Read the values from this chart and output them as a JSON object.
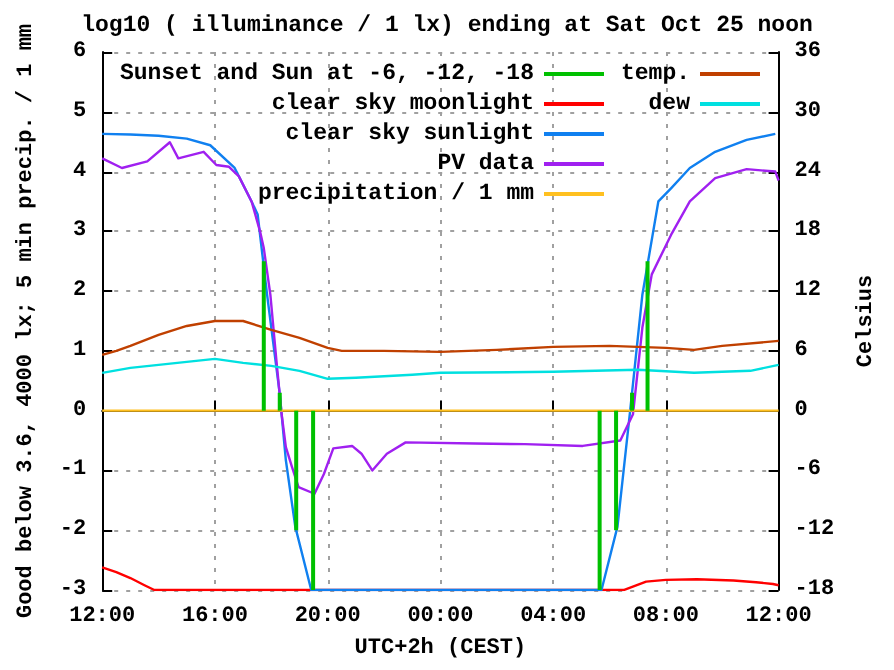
{
  "chart_data": {
    "type": "line",
    "title": "log10 ( illuminance / 1 lx) ending at Sat Oct 25 noon",
    "xlabel": "UTC+2h (CEST)",
    "ylabel": "Good below 3.6, 4000 lx; 5 min precip. / 1 mm",
    "y2label": "Celsius",
    "xlim": [
      "--10-24T12:00",
      "--10-25T12:00"
    ],
    "xticks": [
      {
        "value": "--10-24T12:00",
        "label": "12:00"
      },
      {
        "value": "--10-24T16:00",
        "label": "16:00"
      },
      {
        "value": "--10-24T20:00",
        "label": "20:00"
      },
      {
        "value": "--10-25T00:00",
        "label": "00:00"
      },
      {
        "value": "--10-25T04:00",
        "label": "04:00"
      },
      {
        "value": "--10-25T08:00",
        "label": "08:00"
      },
      {
        "value": "--10-25T12:00",
        "label": "12:00"
      }
    ],
    "ylim": [
      -3,
      6
    ],
    "yticks": [
      -3,
      -2,
      -1,
      0,
      1,
      2,
      3,
      4,
      5,
      6
    ],
    "y2lim": [
      -18,
      36
    ],
    "y2ticks": [
      -18,
      -12,
      -6,
      0,
      6,
      12,
      18,
      24,
      30,
      36
    ],
    "grid": true,
    "legend": "top",
    "marker": "none",
    "line_style": "solid",
    "series": [
      {
        "name": "Sunset and Sun at -6, -12, -18",
        "type": "bar",
        "color": "#00c000",
        "x": [
          "--10-24T17:44",
          "--10-24T18:18",
          "--10-24T18:53",
          "--10-24T19:29",
          "--10-25T05:39",
          "--10-25T06:14",
          "--10-25T06:48",
          "--10-25T07:21"
        ],
        "values": [
          2.5,
          0.3,
          -2.0,
          -3,
          -3,
          -2.0,
          0.3,
          2.5
        ]
      },
      {
        "name": "clear sky moonlight",
        "color": "#ff0000",
        "x": [
          "--10-24T12:00",
          "--10-24T12:30",
          "--10-24T13:00",
          "--10-24T13:30",
          "--10-24T13:51",
          "--10-25T06:30",
          "--10-25T07:18",
          "--10-25T08:00",
          "--10-25T09:06",
          "--10-25T10:24",
          "--10-25T11:12",
          "--10-25T11:48",
          "--10-25T12:00"
        ],
        "values": [
          -2.62,
          -2.7,
          -2.8,
          -2.92,
          -3,
          -3,
          -2.86,
          -2.83,
          -2.82,
          -2.84,
          -2.87,
          -2.9,
          -2.92
        ]
      },
      {
        "name": "clear sky sunlight",
        "color": "#1080f0",
        "x": [
          "--10-24T12:00",
          "--10-24T13:00",
          "--10-24T14:00",
          "--10-24T15:00",
          "--10-24T15:50",
          "--10-24T16:42",
          "--10-24T17:18",
          "--10-24T17:31",
          "--10-24T17:51",
          "--10-24T18:18",
          "--10-24T18:31",
          "--10-24T18:51",
          "--10-24T19:25",
          "--10-25T05:43",
          "--10-25T06:17",
          "--10-25T06:44",
          "--10-25T07:10",
          "--10-25T07:44",
          "--10-25T08:11",
          "--10-25T08:51",
          "--10-25T09:45",
          "--10-25T10:52",
          "--10-25T11:53"
        ],
        "values": [
          4.63,
          4.62,
          4.6,
          4.55,
          4.44,
          4.06,
          3.5,
          3.28,
          1.94,
          0.28,
          -0.83,
          -1.94,
          -3,
          -3,
          -1.94,
          0,
          1.94,
          3.5,
          3.72,
          4.06,
          4.33,
          4.53,
          4.63
        ]
      },
      {
        "name": "PV data",
        "color": "#a020f0",
        "x": [
          "--10-24T12:00",
          "--10-24T12:42",
          "--10-24T13:36",
          "--10-24T14:24",
          "--10-24T14:42",
          "--10-24T15:36",
          "--10-24T16:03",
          "--10-24T16:30",
          "--10-24T16:51",
          "--10-24T17:18",
          "--10-24T17:36",
          "--10-24T17:44",
          "--10-24T17:58",
          "--10-24T18:11",
          "--10-24T18:22",
          "--10-24T18:31",
          "--10-24T18:44",
          "--10-24T18:58",
          "--10-24T19:32",
          "--10-24T19:52",
          "--10-24T20:12",
          "--10-24T20:52",
          "--10-24T21:12",
          "--10-24T21:35",
          "--10-24T22:06",
          "--10-24T22:46",
          "--10-25T01:14",
          "--10-25T03:00",
          "--10-25T05:03",
          "--10-25T06:23",
          "--10-25T06:50",
          "--10-25T07:10",
          "--10-25T07:30",
          "--10-25T08:11",
          "--10-25T08:51",
          "--10-25T09:45",
          "--10-25T10:52",
          "--10-25T11:53",
          "--10-25T12:00"
        ],
        "values": [
          4.22,
          4.06,
          4.17,
          4.49,
          4.22,
          4.33,
          4.11,
          4.08,
          3.92,
          3.5,
          3.0,
          2.72,
          1.94,
          0.83,
          -0.06,
          -0.61,
          -0.94,
          -1.28,
          -1.39,
          -1.06,
          -0.63,
          -0.59,
          -0.72,
          -1.0,
          -0.72,
          -0.53,
          -0.55,
          -0.56,
          -0.59,
          -0.5,
          -0.06,
          1.39,
          2.28,
          2.94,
          3.5,
          3.89,
          4.04,
          4.0,
          3.85
        ]
      },
      {
        "name": "precipitation / 1 mm",
        "color": "#ffc020",
        "x": [
          "--10-24T12:00",
          "--10-25T12:00"
        ],
        "values": [
          0,
          0
        ]
      },
      {
        "name": "temp.",
        "color": "#c04000",
        "axis": "y2",
        "x": [
          "--10-24T12:00",
          "--10-24T12:30",
          "--10-24T13:00",
          "--10-24T14:00",
          "--10-24T15:00",
          "--10-24T16:00",
          "--10-24T17:00",
          "--10-24T18:00",
          "--10-24T19:00",
          "--10-24T20:00",
          "--10-24T20:30",
          "--10-24T22:00",
          "--10-25T00:00",
          "--10-25T02:00",
          "--10-25T04:00",
          "--10-25T06:00",
          "--10-25T08:00",
          "--10-25T09:00",
          "--10-25T10:00",
          "--10-25T12:00"
        ],
        "values": [
          5.6,
          6.0,
          6.5,
          7.6,
          8.5,
          9.0,
          9.0,
          8.1,
          7.3,
          6.3,
          6.0,
          6.0,
          5.9,
          6.1,
          6.4,
          6.5,
          6.3,
          6.1,
          6.5,
          7.0
        ]
      },
      {
        "name": "dew",
        "color": "#00e0e0",
        "axis": "y2",
        "x": [
          "--10-24T12:00",
          "--10-24T13:00",
          "--10-24T14:00",
          "--10-24T15:00",
          "--10-24T16:00",
          "--10-24T17:00",
          "--10-24T18:00",
          "--10-24T19:00",
          "--10-24T20:00",
          "--10-24T21:00",
          "--10-24T23:00",
          "--10-25T00:00",
          "--10-25T04:00",
          "--10-25T07:00",
          "--10-25T09:00",
          "--10-25T11:00",
          "--10-25T12:00"
        ],
        "values": [
          3.8,
          4.3,
          4.6,
          4.9,
          5.2,
          4.8,
          4.5,
          4.0,
          3.2,
          3.3,
          3.6,
          3.8,
          3.9,
          4.1,
          3.8,
          4.0,
          4.6
        ]
      }
    ]
  }
}
